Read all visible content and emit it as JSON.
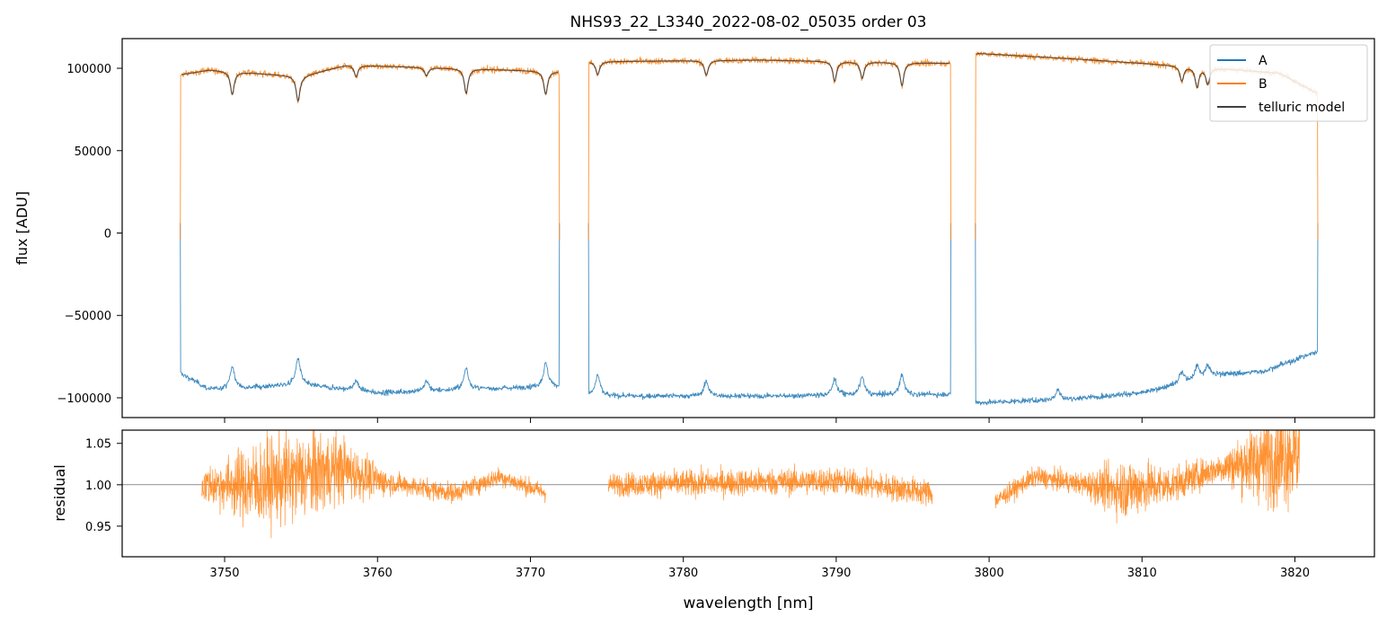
{
  "figure": {
    "title": "NHS93_22_L3340_2022-08-02_05035  order 03"
  },
  "chart_data": [
    {
      "type": "line",
      "panel": "flux",
      "xlabel": "",
      "ylabel": "flux [ADU]",
      "xlim": [
        3743.3,
        3825.2
      ],
      "ylim": [
        -112000,
        118000
      ],
      "x_ticks": [
        3750,
        3760,
        3770,
        3780,
        3790,
        3800,
        3810,
        3820
      ],
      "y_ticks": [
        100000,
        50000,
        0,
        -50000,
        -100000
      ],
      "y_tick_labels": [
        "100000",
        "50000",
        "0",
        "−50000",
        "−100000"
      ],
      "legend_position": "top-right",
      "segments": [
        [
          3747.1,
          3771.9
        ],
        [
          3773.8,
          3797.5
        ],
        [
          3799.1,
          3821.5
        ]
      ],
      "series": [
        {
          "name": "A",
          "color": "#1f77b4",
          "baseline": [
            [
              3747.1,
              -85000
            ],
            [
              3749,
              -95000
            ],
            [
              3755,
              -92000
            ],
            [
              3760,
              -97000
            ],
            [
              3771.8,
              -93000
            ],
            [
              3774.2,
              -99000
            ],
            [
              3785,
              -99000
            ],
            [
              3797.3,
              -98000
            ],
            [
              3799.3,
              -103000
            ],
            [
              3805,
              -101000
            ],
            [
              3810,
              -97000
            ],
            [
              3815,
              -86000
            ],
            [
              3818,
              -84000
            ],
            [
              3821.4,
              -72000
            ]
          ],
          "peaks": [
            [
              3750.5,
              13000
            ],
            [
              3754.8,
              16000
            ],
            [
              3758.6,
              6000
            ],
            [
              3763.2,
              6000
            ],
            [
              3765.8,
              13000
            ],
            [
              3771.0,
              14000
            ],
            [
              3774.4,
              13000
            ],
            [
              3781.5,
              9000
            ],
            [
              3789.9,
              10000
            ],
            [
              3791.7,
              11000
            ],
            [
              3794.3,
              12000
            ],
            [
              3804.5,
              6000
            ],
            [
              3812.6,
              7000
            ],
            [
              3813.6,
              8000
            ],
            [
              3814.3,
              7000
            ]
          ]
        },
        {
          "name": "B",
          "color": "#ff7f0e",
          "baseline": [
            [
              3747.1,
              96000
            ],
            [
              3749,
              99000
            ],
            [
              3752,
              97000
            ],
            [
              3755,
              95000
            ],
            [
              3758,
              102000
            ],
            [
              3771.8,
              98000
            ],
            [
              3773.9,
              104000
            ],
            [
              3785,
              105000
            ],
            [
              3797.3,
              103000
            ],
            [
              3799.3,
              109000
            ],
            [
              3805,
              106000
            ],
            [
              3810,
              103000
            ],
            [
              3815,
              100000
            ],
            [
              3819,
              97000
            ],
            [
              3821.4,
              85000
            ]
          ]
        },
        {
          "name": "telluric model",
          "color": "#404040",
          "lines": [
            [
              3750.5,
              14000
            ],
            [
              3754.8,
              15000
            ],
            [
              3758.6,
              7000
            ],
            [
              3763.2,
              5000
            ],
            [
              3765.8,
              15000
            ],
            [
              3771.0,
              14000
            ],
            [
              3774.4,
              8000
            ],
            [
              3781.5,
              9000
            ],
            [
              3789.9,
              12000
            ],
            [
              3791.7,
              10000
            ],
            [
              3794.3,
              14000
            ],
            [
              3812.6,
              9000
            ],
            [
              3813.6,
              12000
            ],
            [
              3814.3,
              10000
            ]
          ]
        }
      ]
    },
    {
      "type": "line",
      "panel": "residual",
      "xlabel": "wavelength [nm]",
      "ylabel": "residual",
      "xlim": [
        3743.3,
        3825.2
      ],
      "ylim": [
        0.913,
        1.066
      ],
      "x_ticks": [
        3750,
        3760,
        3770,
        3780,
        3790,
        3800,
        3810,
        3820
      ],
      "y_ticks": [
        1.05,
        1.0,
        0.95
      ],
      "y_tick_labels": [
        "1.05",
        "1.00",
        "0.95"
      ],
      "reference_line": 1.0,
      "segments": [
        [
          3748.5,
          3771.0
        ],
        [
          3775.1,
          3796.3
        ],
        [
          3800.4,
          3820.3
        ]
      ],
      "series": [
        {
          "name": "",
          "color": "#ff7f0e",
          "trend": [
            [
              3748.5,
              1.0
            ],
            [
              3752,
              1.0
            ],
            [
              3757.5,
              1.02
            ],
            [
              3760,
              1.005
            ],
            [
              3765,
              0.99
            ],
            [
              3768,
              1.01
            ],
            [
              3771,
              0.99
            ],
            [
              3775.1,
              1.0
            ],
            [
              3790,
              1.005
            ],
            [
              3796.3,
              0.99
            ],
            [
              3800.4,
              0.98
            ],
            [
              3803,
              1.01
            ],
            [
              3808,
              0.995
            ],
            [
              3812,
              1.0
            ],
            [
              3815,
              1.02
            ],
            [
              3818,
              1.03
            ],
            [
              3820.3,
              1.04
            ]
          ],
          "noise": [
            [
              3748.5,
              0.02
            ],
            [
              3750,
              0.03
            ],
            [
              3752,
              0.05
            ],
            [
              3756,
              0.05
            ],
            [
              3758.5,
              0.03
            ],
            [
              3761,
              0.012
            ],
            [
              3770,
              0.01
            ],
            [
              3780,
              0.015
            ],
            [
              3796.3,
              0.015
            ],
            [
              3800.4,
              0.01
            ],
            [
              3806,
              0.012
            ],
            [
              3809,
              0.035
            ],
            [
              3812,
              0.02
            ],
            [
              3815,
              0.015
            ],
            [
              3818,
              0.05
            ],
            [
              3820.3,
              0.06
            ]
          ]
        }
      ]
    }
  ]
}
